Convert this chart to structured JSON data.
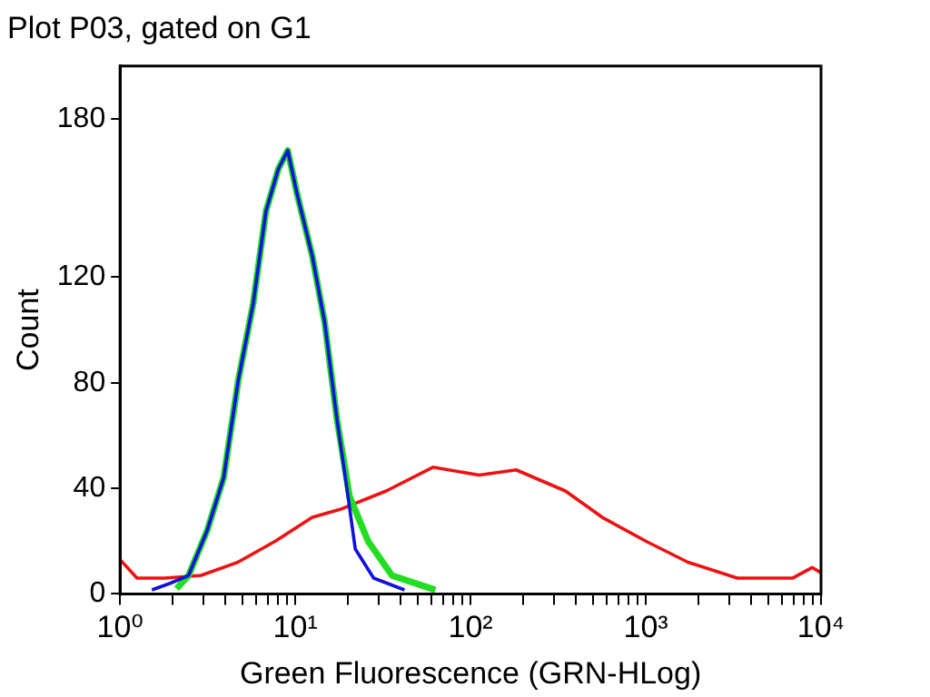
{
  "chart_data": {
    "type": "line",
    "title": "Plot P03, gated on G1",
    "xlabel": "Green Fluorescence (GRN-HLog)",
    "ylabel": "Count",
    "log": "x",
    "grid": false,
    "legend": false,
    "marker": "none",
    "line_style": "solid",
    "xlim": [
      1,
      10000
    ],
    "xticks": [
      {
        "value": 1,
        "label": "10⁰"
      },
      {
        "value": 2,
        "label": null
      },
      {
        "value": 3,
        "label": null
      },
      {
        "value": 4,
        "label": null
      },
      {
        "value": 5,
        "label": null
      },
      {
        "value": 6,
        "label": null
      },
      {
        "value": 7,
        "label": null
      },
      {
        "value": 8,
        "label": null
      },
      {
        "value": 9,
        "label": null
      },
      {
        "value": 10,
        "label": "10¹"
      },
      {
        "value": 20,
        "label": null
      },
      {
        "value": 30,
        "label": null
      },
      {
        "value": 40,
        "label": null
      },
      {
        "value": 50,
        "label": null
      },
      {
        "value": 60,
        "label": null
      },
      {
        "value": 70,
        "label": null
      },
      {
        "value": 80,
        "label": null
      },
      {
        "value": 90,
        "label": null
      },
      {
        "value": 100,
        "label": "10²"
      },
      {
        "value": 200,
        "label": null
      },
      {
        "value": 300,
        "label": null
      },
      {
        "value": 400,
        "label": null
      },
      {
        "value": 500,
        "label": null
      },
      {
        "value": 600,
        "label": null
      },
      {
        "value": 700,
        "label": null
      },
      {
        "value": 800,
        "label": null
      },
      {
        "value": 900,
        "label": null
      },
      {
        "value": 1000,
        "label": "10³"
      },
      {
        "value": 2000,
        "label": null
      },
      {
        "value": 3000,
        "label": null
      },
      {
        "value": 4000,
        "label": null
      },
      {
        "value": 5000,
        "label": null
      },
      {
        "value": 6000,
        "label": null
      },
      {
        "value": 7000,
        "label": null
      },
      {
        "value": 8000,
        "label": null
      },
      {
        "value": 9000,
        "label": null
      },
      {
        "value": 10000,
        "label": "10⁴"
      }
    ],
    "ylim": [
      0,
      200
    ],
    "yticks": [
      0,
      40,
      80,
      120,
      180
    ],
    "series": [
      {
        "color": "#ee1111",
        "x": [
          1,
          1.25,
          1.8,
          2.9,
          4.7,
          7.7,
          12.5,
          18,
          33,
          61,
          112,
          182,
          348,
          565,
          1000,
          1740,
          3330,
          6900,
          8900,
          10000
        ],
        "values": [
          13,
          6,
          6,
          7,
          12,
          20,
          29,
          32,
          39,
          48,
          45,
          47,
          39,
          29,
          20,
          12,
          6,
          6,
          10,
          8
        ]
      },
      {
        "color": "#22dd22",
        "x": [
          2.1,
          2.46,
          3.14,
          3.9,
          4.73,
          5.75,
          6.8,
          8.0,
          9.06,
          10.2,
          12.5,
          14.7,
          17.3,
          20.4,
          26,
          35.6,
          63
        ],
        "values": [
          2,
          7,
          24,
          44,
          81,
          110,
          145,
          161,
          168,
          152,
          128,
          103,
          66,
          37,
          20,
          7,
          1.5
        ]
      },
      {
        "color": "#1111dd",
        "x": [
          1.52,
          1.93,
          2.46,
          3.14,
          3.9,
          4.73,
          5.75,
          6.8,
          8.0,
          9.06,
          10.2,
          12.5,
          14.7,
          17.3,
          19.5,
          22,
          28,
          42
        ],
        "values": [
          1.5,
          4,
          7,
          24,
          44,
          81,
          110,
          145,
          161,
          168,
          152,
          128,
          103,
          66,
          42,
          17,
          6,
          1.5
        ]
      }
    ]
  }
}
